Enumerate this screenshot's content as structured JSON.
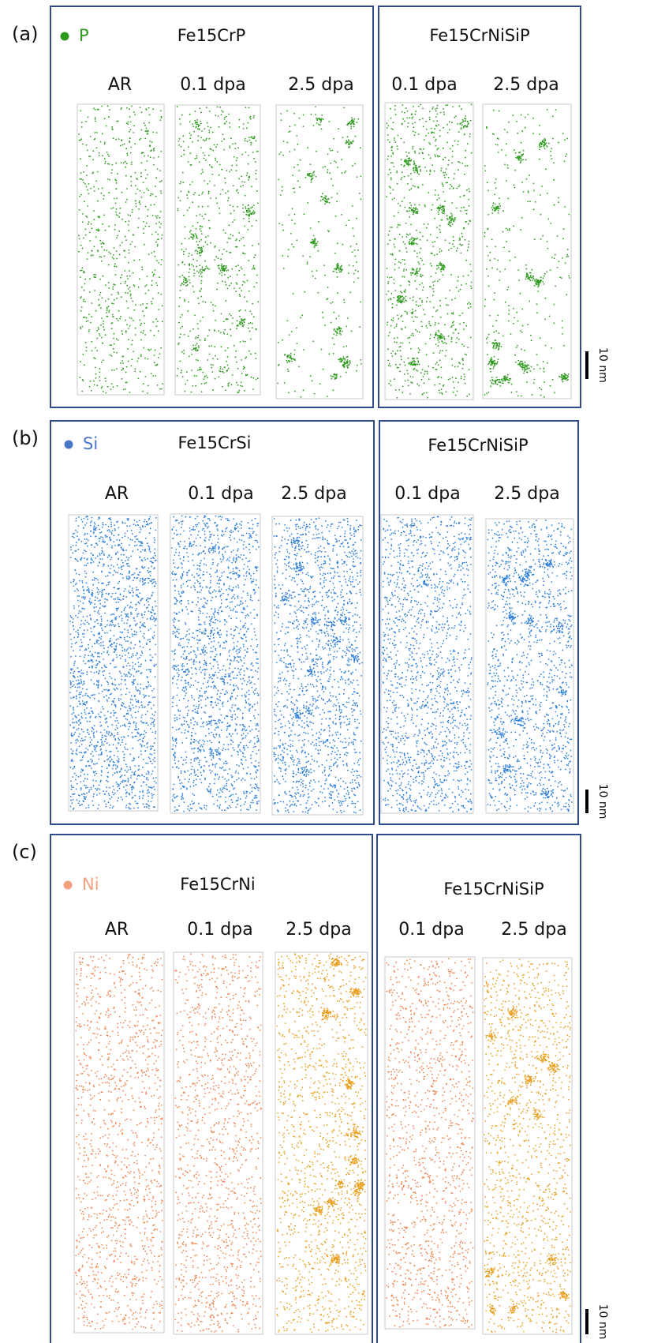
{
  "panels": [
    {
      "label": "(a)",
      "element": "P",
      "scale_bar": "10 nm",
      "groups": [
        {
          "title": "Fe15CrP",
          "columns": [
            "AR",
            "0.1 dpa",
            "2.5 dpa"
          ]
        },
        {
          "title": "Fe15CrNiSiP",
          "columns": [
            "0.1 dpa",
            "2.5 dpa"
          ]
        }
      ]
    },
    {
      "label": "(b)",
      "element": "Si",
      "scale_bar": "10 nm",
      "groups": [
        {
          "title": "Fe15CrSi",
          "columns": [
            "AR",
            "0.1 dpa",
            "2.5 dpa"
          ]
        },
        {
          "title": "Fe15CrNiSiP",
          "columns": [
            "0.1 dpa",
            "2.5 dpa"
          ]
        }
      ]
    },
    {
      "label": "(c)",
      "element": "Ni",
      "scale_bar": "10 nm",
      "groups": [
        {
          "title": "Fe15CrNi",
          "columns": [
            "AR",
            "0.1 dpa",
            "2.5 dpa"
          ]
        },
        {
          "title": "Fe15CrNiSiP",
          "columns": [
            "0.1 dpa",
            "2.5 dpa"
          ]
        }
      ]
    }
  ]
}
